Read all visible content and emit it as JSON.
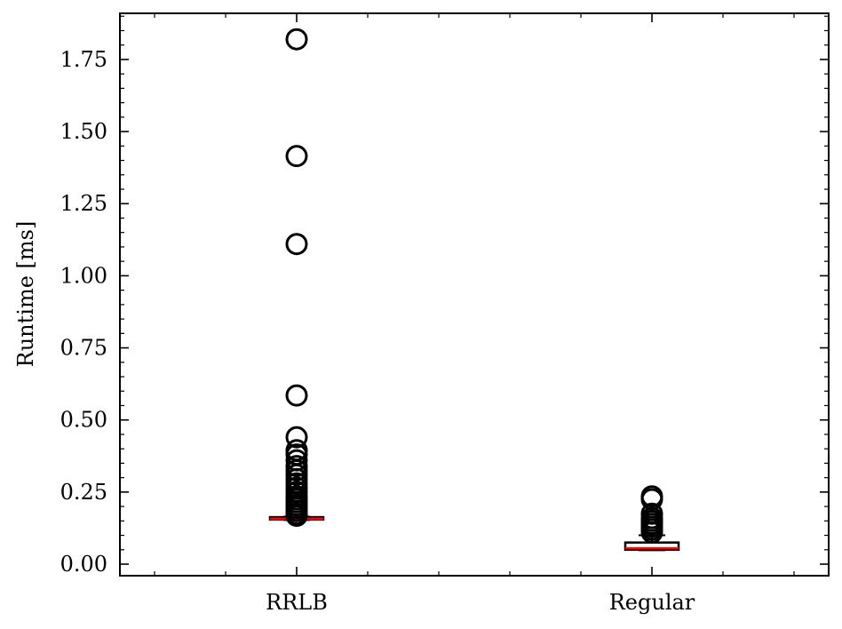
{
  "chart_data": {
    "type": "box",
    "ylabel": "Runtime [ms]",
    "xlabel": "",
    "ylim": [
      -0.04,
      1.91
    ],
    "yticks": [
      "0.00",
      "0.25",
      "0.50",
      "0.75",
      "1.00",
      "1.25",
      "1.50",
      "1.75"
    ],
    "categories": [
      "RRLB",
      "Regular"
    ],
    "grid": false,
    "colors": {
      "box": "#000000",
      "median": "#ff0000",
      "flier": "#000000"
    },
    "boxes": [
      {
        "category": "RRLB",
        "whisker_low": 0.153,
        "q1": 0.155,
        "median": 0.158,
        "q3": 0.163,
        "whisker_high": 0.165,
        "outliers": [
          1.82,
          1.415,
          1.11,
          0.585,
          0.44,
          0.395,
          0.38,
          0.36,
          0.34,
          0.325,
          0.31,
          0.295,
          0.28,
          0.265,
          0.25,
          0.235,
          0.225,
          0.215,
          0.205,
          0.195,
          0.185,
          0.175,
          0.168
        ]
      },
      {
        "category": "Regular",
        "whisker_low": 0.048,
        "q1": 0.05,
        "median": 0.055,
        "q3": 0.075,
        "whisker_high": 0.1,
        "outliers": [
          0.235,
          0.225,
          0.175,
          0.16,
          0.15,
          0.14,
          0.13,
          0.12,
          0.11
        ]
      }
    ]
  }
}
